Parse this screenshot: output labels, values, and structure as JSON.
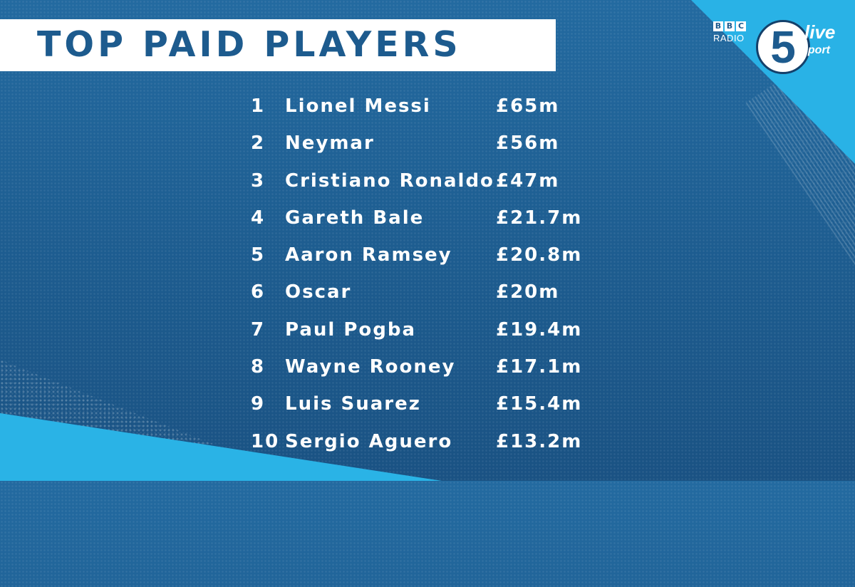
{
  "title": "TOP PAID PLAYERS",
  "logo": {
    "bbc_letters": [
      "B",
      "B",
      "C"
    ],
    "radio": "RADIO",
    "number": "5",
    "live": "live",
    "sport": "sport"
  },
  "players": [
    {
      "rank": "1",
      "name": "Lionel Messi",
      "salary": "£65m"
    },
    {
      "rank": "2",
      "name": "Neymar",
      "salary": "£56m"
    },
    {
      "rank": "3",
      "name": "Cristiano Ronaldo",
      "salary": "£47m"
    },
    {
      "rank": "4",
      "name": "Gareth Bale",
      "salary": "£21.7m"
    },
    {
      "rank": "5",
      "name": "Aaron Ramsey",
      "salary": "£20.8m"
    },
    {
      "rank": "6",
      "name": "Oscar",
      "salary": "£20m"
    },
    {
      "rank": "7",
      "name": "Paul Pogba",
      "salary": "£19.4m"
    },
    {
      "rank": "8",
      "name": "Wayne Rooney",
      "salary": "£17.1m"
    },
    {
      "rank": "9",
      "name": "Luis Suarez",
      "salary": "£15.4m"
    },
    {
      "rank": "10",
      "name": "Sergio Aguero",
      "salary": "£13.2m"
    }
  ],
  "colors": {
    "background": "#1e5f93",
    "accent_cyan": "#29b2e6",
    "title_text": "#1d5b8e",
    "title_bar": "#ffffff"
  }
}
